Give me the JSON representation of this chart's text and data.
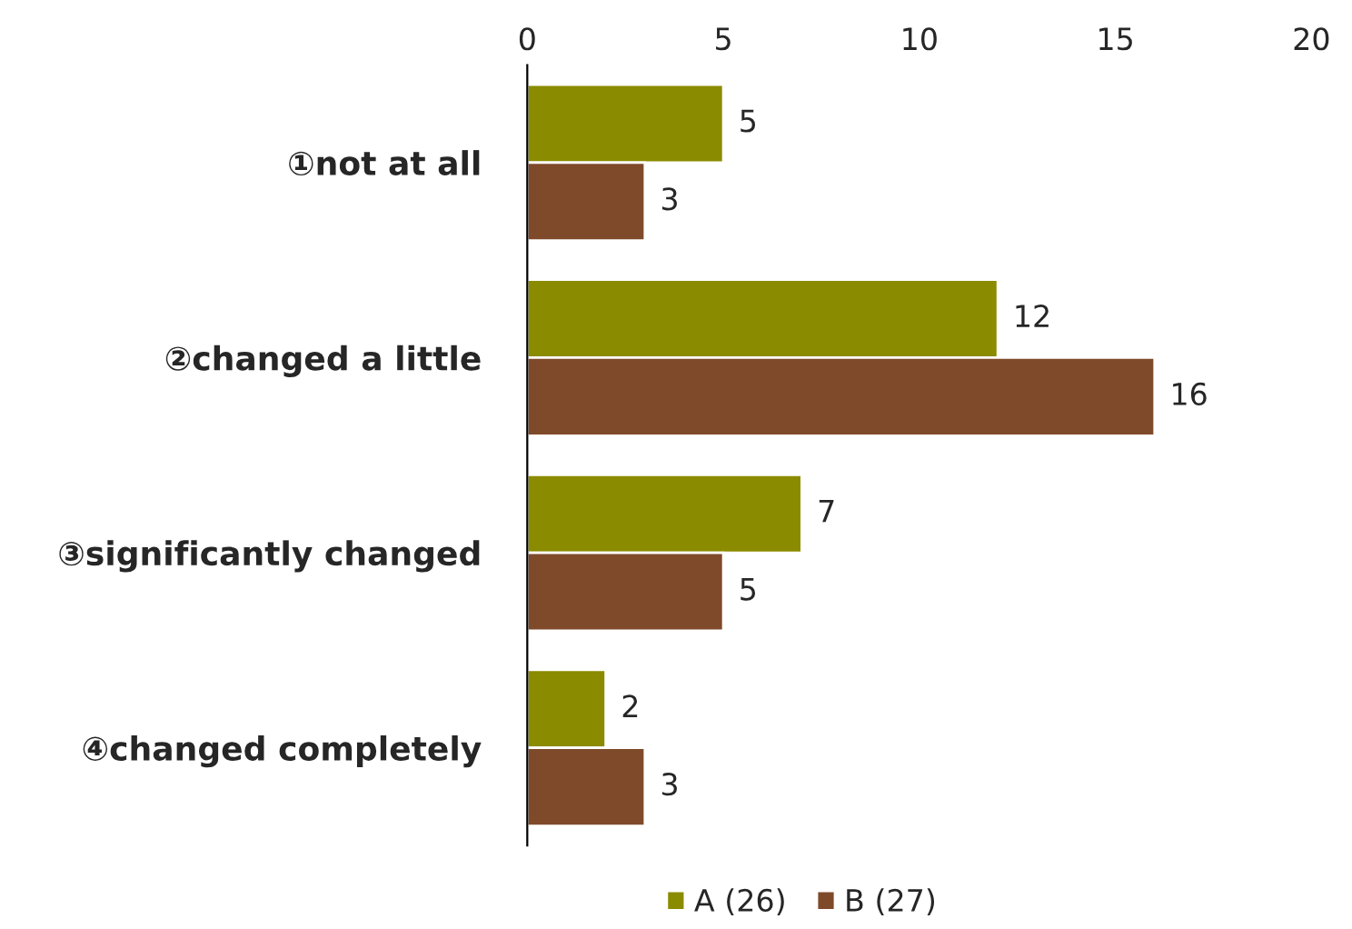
{
  "chart_data": {
    "type": "bar",
    "orientation": "horizontal",
    "categories": [
      "①not at all",
      "②changed a little",
      "③significantly changed",
      "④changed completely"
    ],
    "series": [
      {
        "name": "A (26)",
        "color": "#8b8b00",
        "values": [
          5,
          12,
          7,
          2
        ]
      },
      {
        "name": "B (27)",
        "color": "#7f4a2a",
        "values": [
          3,
          16,
          5,
          3
        ]
      }
    ],
    "xlim": [
      0,
      20
    ],
    "xticks": [
      0,
      5,
      10,
      15,
      20
    ],
    "data_labels": true,
    "grid": false,
    "legend": "bottom"
  }
}
